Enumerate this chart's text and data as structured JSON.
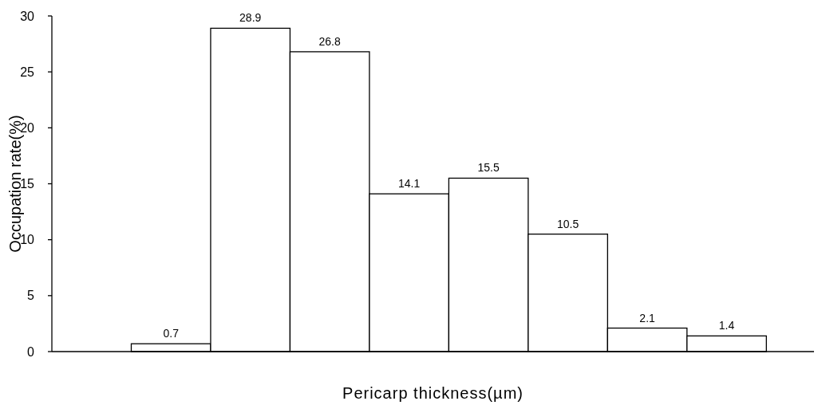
{
  "chart_data": {
    "type": "bar",
    "xlabel": "Pericarp thickness(µm)",
    "ylabel": "Occupation rate(%)",
    "categories": [
      null,
      null,
      null,
      null,
      null,
      null,
      null,
      null
    ],
    "values": [
      0.7,
      28.9,
      26.8,
      14.1,
      15.5,
      10.5,
      2.1,
      1.4
    ],
    "color": "#ffffff",
    "ylim": [
      0,
      30
    ],
    "yticks": [
      0,
      5,
      10,
      15,
      20,
      25,
      30
    ],
    "data_labels": true
  }
}
